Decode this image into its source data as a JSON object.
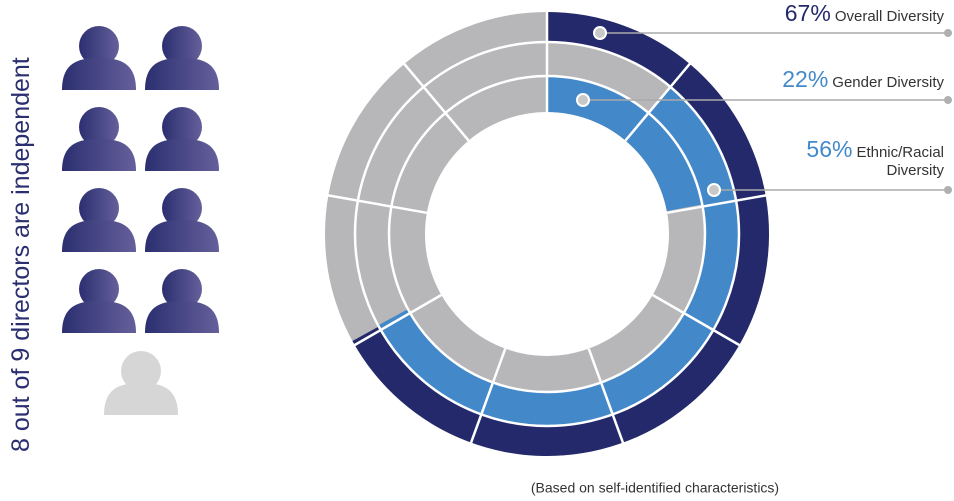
{
  "chart_data": {
    "type": "donut",
    "rings": [
      {
        "name": "Overall Diversity",
        "value": 67,
        "value_label": "67%",
        "color": "#23296b"
      },
      {
        "name": "Ethnic/Racial Diversity",
        "value": 56,
        "value_label": "56%",
        "color": "#4389c9"
      },
      {
        "name": "Gender Diversity",
        "value": 22,
        "value_label": "22%",
        "color": "#4389c9"
      }
    ],
    "note": "(Based on self-identified characteristics)"
  },
  "directors": {
    "independent": 8,
    "text_1": "out of",
    "total": 9,
    "text_2": "directors are independent"
  }
}
